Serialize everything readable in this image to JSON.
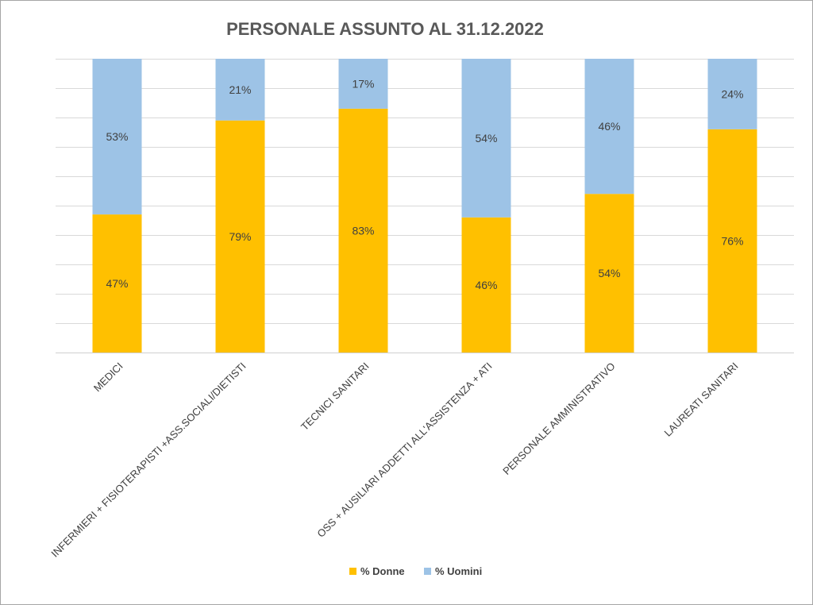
{
  "chart_data": {
    "type": "bar",
    "stacked": true,
    "title": "PERSONALE ASSUNTO  AL 31.12.2022",
    "categories": [
      "MEDICI",
      "INFERMIERI + FISIOTERAPISTI +ASS.SOCIALI/DIETISTI",
      "TECNICI SANITARI",
      "OSS + AUSILIARI ADDETTI ALL'ASSISTENZA + ATI",
      "PERSONALE AMMINISTRATIVO",
      "LAUREATI SANITARI"
    ],
    "series": [
      {
        "name": "% Donne",
        "color": "#FFC000",
        "values": [
          47,
          79,
          83,
          46,
          54,
          76
        ]
      },
      {
        "name": "% Uomini",
        "color": "#9DC3E6",
        "values": [
          53,
          21,
          17,
          54,
          46,
          24
        ]
      }
    ],
    "ylim": [
      0,
      100
    ],
    "grid": true,
    "legend_position": "bottom",
    "data_label_suffix": "%"
  }
}
